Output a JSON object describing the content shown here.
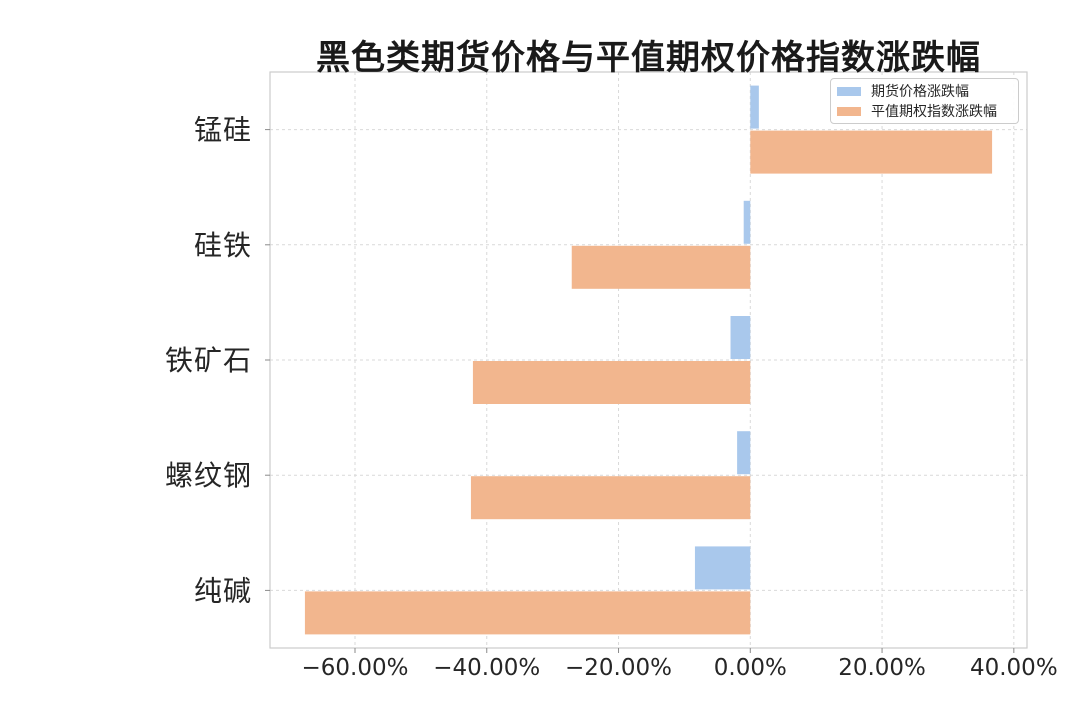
{
  "title": "黑色类期货价格与平值期权价格指数涨跌幅",
  "chart_data": {
    "type": "bar",
    "orientation": "horizontal",
    "title": "黑色类期货价格与平值期权价格指数涨跌幅",
    "categories": [
      "锰硅",
      "硅铁",
      "铁矿石",
      "螺纹钢",
      "纯碱"
    ],
    "series": [
      {
        "name": "期货价格涨跌幅",
        "color": "#a9c8ec",
        "values": [
          1.3,
          -1.0,
          -3.0,
          -2.0,
          -8.4
        ]
      },
      {
        "name": "平值期权指数涨跌幅",
        "color": "#f2b68e",
        "values": [
          36.7,
          -27.1,
          -42.1,
          -42.4,
          -67.6
        ]
      }
    ],
    "value_unit": "%",
    "x_ticks": [
      -60,
      -40,
      -20,
      0,
      20,
      40
    ],
    "x_tick_labels": [
      "−60.00%",
      "−40.00%",
      "−20.00%",
      "0.00%",
      "20.00%",
      "40.00%"
    ],
    "xlim": [
      -72.9,
      42.0
    ],
    "grid": "dashed",
    "legend_position": "upper right"
  },
  "colors": {
    "series_futures": "#a9c8ec",
    "series_option": "#f2b68e",
    "gridline": "#d9d9d9",
    "plot_border": "#cccccc",
    "text": "#262626",
    "tick_mark": "#8a8a8a",
    "background": "#ffffff"
  }
}
